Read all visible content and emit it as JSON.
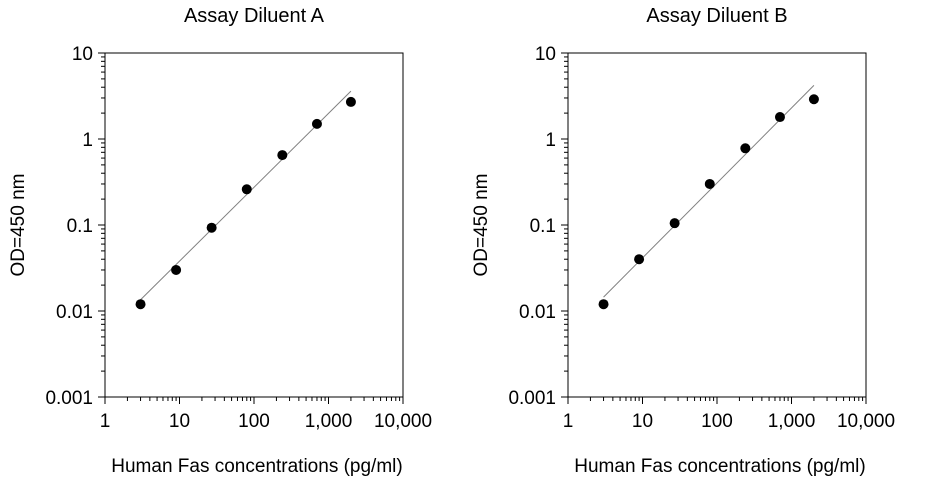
{
  "chart_data": [
    {
      "type": "scatter",
      "title": "Assay Diluent A",
      "xlabel": "Human Fas concentrations (pg/ml)",
      "ylabel": "OD=450 nm",
      "x_scale": "log",
      "y_scale": "log",
      "xlim": [
        1,
        10000
      ],
      "ylim": [
        0.001,
        10
      ],
      "x_ticks": [
        "1",
        "10",
        "100",
        "1,000",
        "10,000"
      ],
      "y_ticks": [
        "0.001",
        "0.01",
        "0.1",
        "1",
        "10"
      ],
      "grid": false,
      "legend": "none",
      "point_color": "#000000",
      "line_color": "#808080",
      "series": [
        {
          "x": [
            3,
            9,
            27,
            80,
            240,
            700,
            2000
          ],
          "y": [
            0.012,
            0.03,
            0.093,
            0.26,
            0.65,
            1.5,
            2.7
          ]
        }
      ],
      "fit_line": {
        "x": [
          3,
          2000
        ],
        "y": [
          0.0135,
          3.6
        ]
      }
    },
    {
      "type": "scatter",
      "title": "Assay Diluent B",
      "xlabel": "Human Fas concentrations (pg/ml)",
      "ylabel": "OD=450 nm",
      "x_scale": "log",
      "y_scale": "log",
      "xlim": [
        1,
        10000
      ],
      "ylim": [
        0.001,
        10
      ],
      "x_ticks": [
        "1",
        "10",
        "100",
        "1,000",
        "10,000"
      ],
      "y_ticks": [
        "0.001",
        "0.01",
        "0.1",
        "1",
        "10"
      ],
      "grid": false,
      "legend": "none",
      "point_color": "#000000",
      "line_color": "#808080",
      "series": [
        {
          "x": [
            3,
            9,
            27,
            80,
            240,
            700,
            2000
          ],
          "y": [
            0.012,
            0.04,
            0.105,
            0.3,
            0.78,
            1.8,
            2.9
          ]
        }
      ],
      "fit_line": {
        "x": [
          3,
          2000
        ],
        "y": [
          0.0145,
          4.2
        ]
      }
    }
  ]
}
